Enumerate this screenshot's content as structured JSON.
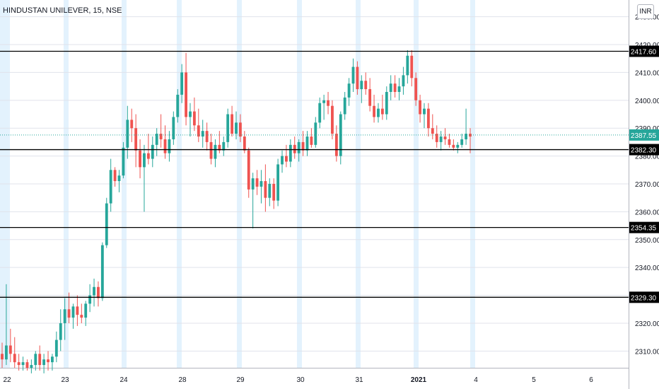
{
  "header": {
    "title": "HINDUSTAN UNILEVER, 15, NSE",
    "currency": "INR"
  },
  "colors": {
    "up": "#26a69a",
    "down": "#ef5350",
    "level_line": "#000000",
    "last_price": "#26a69a",
    "session_shade": "#e3f2fd",
    "grid": "#e0e3eb"
  },
  "chart_data": {
    "type": "candlestick",
    "title": "HINDUSTAN UNILEVER, 15, NSE",
    "currency": "INR",
    "ylim": [
      2304,
      2436
    ],
    "y_ticks": [
      2310,
      2320,
      2330,
      2340,
      2350,
      2360,
      2370,
      2380,
      2390,
      2400,
      2410,
      2420,
      2430
    ],
    "x_ticks": [
      {
        "label": "22",
        "bold": false
      },
      {
        "label": "23",
        "bold": false
      },
      {
        "label": "24",
        "bold": false
      },
      {
        "label": "28",
        "bold": false
      },
      {
        "label": "29",
        "bold": false
      },
      {
        "label": "30",
        "bold": false
      },
      {
        "label": "31",
        "bold": false
      },
      {
        "label": "2021",
        "bold": true
      },
      {
        "label": "4",
        "bold": false
      },
      {
        "label": "5",
        "bold": false
      },
      {
        "label": "6",
        "bold": false
      }
    ],
    "horizontal_levels": [
      {
        "value": 2417.6,
        "label": "2417.60"
      },
      {
        "value": 2382.3,
        "label": "2382.30"
      },
      {
        "value": 2354.35,
        "label": "2354.35"
      },
      {
        "value": 2329.3,
        "label": "2329.30"
      }
    ],
    "last_price": {
      "value": 2387.55,
      "label": "2387.55"
    },
    "series": [
      {
        "name": "HINDUSTAN UNILEVER",
        "ohlc": [
          [
            2309,
            2313,
            2304,
            2307
          ],
          [
            2307,
            2334,
            2305,
            2312
          ],
          [
            2312,
            2318,
            2306,
            2309
          ],
          [
            2309,
            2315,
            2304,
            2306
          ],
          [
            2306,
            2309,
            2303,
            2305
          ],
          [
            2305,
            2308,
            2303,
            2306
          ],
          [
            2306,
            2307,
            2303,
            2304
          ],
          [
            2304,
            2307,
            2302,
            2305
          ],
          [
            2305,
            2310,
            2303,
            2309
          ],
          [
            2309,
            2312,
            2303,
            2305
          ],
          [
            2305,
            2309,
            2302,
            2307
          ],
          [
            2307,
            2310,
            2303,
            2306
          ],
          [
            2306,
            2309,
            2303,
            2308
          ],
          [
            2308,
            2317,
            2306,
            2314
          ],
          [
            2314,
            2325,
            2310,
            2320
          ],
          [
            2320,
            2329,
            2314,
            2325
          ],
          [
            2325,
            2331,
            2320,
            2322
          ],
          [
            2322,
            2327,
            2318,
            2326
          ],
          [
            2326,
            2330,
            2319,
            2323
          ],
          [
            2323,
            2327,
            2320,
            2322
          ],
          [
            2322,
            2328,
            2319,
            2327
          ],
          [
            2327,
            2334,
            2324,
            2330
          ],
          [
            2330,
            2336,
            2326,
            2333
          ],
          [
            2333,
            2335,
            2326,
            2329
          ],
          [
            2329,
            2349,
            2328,
            2348
          ],
          [
            2348,
            2365,
            2347,
            2363
          ],
          [
            2363,
            2379,
            2360,
            2375
          ],
          [
            2375,
            2376,
            2369,
            2371
          ],
          [
            2371,
            2375,
            2367,
            2373
          ],
          [
            2373,
            2385,
            2372,
            2383
          ],
          [
            2383,
            2398,
            2379,
            2393
          ],
          [
            2393,
            2397,
            2385,
            2390
          ],
          [
            2390,
            2395,
            2376,
            2382
          ],
          [
            2382,
            2386,
            2372,
            2376
          ],
          [
            2376,
            2384,
            2360,
            2381
          ],
          [
            2381,
            2388,
            2377,
            2379
          ],
          [
            2379,
            2387,
            2376,
            2384
          ],
          [
            2384,
            2390,
            2380,
            2388
          ],
          [
            2388,
            2395,
            2383,
            2386
          ],
          [
            2386,
            2391,
            2379,
            2381
          ],
          [
            2381,
            2389,
            2378,
            2386
          ],
          [
            2386,
            2396,
            2384,
            2394
          ],
          [
            2394,
            2404,
            2392,
            2402
          ],
          [
            2402,
            2413,
            2399,
            2410
          ],
          [
            2410,
            2417,
            2391,
            2394
          ],
          [
            2394,
            2399,
            2387,
            2396
          ],
          [
            2396,
            2401,
            2389,
            2391
          ],
          [
            2391,
            2397,
            2385,
            2387
          ],
          [
            2387,
            2393,
            2383,
            2389
          ],
          [
            2389,
            2392,
            2382,
            2385
          ],
          [
            2385,
            2388,
            2377,
            2379
          ],
          [
            2379,
            2386,
            2376,
            2384
          ],
          [
            2384,
            2389,
            2381,
            2382
          ],
          [
            2382,
            2387,
            2380,
            2385
          ],
          [
            2385,
            2397,
            2383,
            2395
          ],
          [
            2395,
            2398,
            2387,
            2388
          ],
          [
            2388,
            2396,
            2386,
            2392
          ],
          [
            2392,
            2395,
            2385,
            2387
          ],
          [
            2387,
            2389,
            2381,
            2382
          ],
          [
            2382,
            2383,
            2365,
            2368
          ],
          [
            2368,
            2374,
            2354,
            2372
          ],
          [
            2372,
            2375,
            2366,
            2369
          ],
          [
            2369,
            2375,
            2363,
            2371
          ],
          [
            2371,
            2377,
            2360,
            2365
          ],
          [
            2365,
            2372,
            2362,
            2370
          ],
          [
            2370,
            2372,
            2361,
            2364
          ],
          [
            2364,
            2379,
            2362,
            2377
          ],
          [
            2377,
            2382,
            2374,
            2380
          ],
          [
            2380,
            2384,
            2376,
            2378
          ],
          [
            2378,
            2386,
            2376,
            2384
          ],
          [
            2384,
            2387,
            2379,
            2381
          ],
          [
            2381,
            2386,
            2378,
            2385
          ],
          [
            2385,
            2389,
            2380,
            2382
          ],
          [
            2382,
            2389,
            2380,
            2387
          ],
          [
            2387,
            2390,
            2383,
            2384
          ],
          [
            2384,
            2394,
            2383,
            2392
          ],
          [
            2392,
            2401,
            2390,
            2399
          ],
          [
            2399,
            2402,
            2393,
            2400
          ],
          [
            2400,
            2403,
            2395,
            2398
          ],
          [
            2398,
            2400,
            2386,
            2388
          ],
          [
            2388,
            2391,
            2378,
            2380
          ],
          [
            2380,
            2396,
            2377,
            2395
          ],
          [
            2395,
            2403,
            2393,
            2401
          ],
          [
            2401,
            2408,
            2398,
            2406
          ],
          [
            2406,
            2415,
            2403,
            2412
          ],
          [
            2412,
            2414,
            2402,
            2404
          ],
          [
            2404,
            2409,
            2399,
            2407
          ],
          [
            2407,
            2410,
            2402,
            2404
          ],
          [
            2404,
            2408,
            2396,
            2398
          ],
          [
            2398,
            2402,
            2392,
            2394
          ],
          [
            2394,
            2399,
            2392,
            2397
          ],
          [
            2397,
            2402,
            2393,
            2395
          ],
          [
            2395,
            2405,
            2393,
            2403
          ],
          [
            2403,
            2409,
            2400,
            2406
          ],
          [
            2406,
            2409,
            2401,
            2403
          ],
          [
            2403,
            2408,
            2400,
            2405
          ],
          [
            2405,
            2412,
            2402,
            2409
          ],
          [
            2409,
            2418,
            2406,
            2416
          ],
          [
            2416,
            2418,
            2405,
            2408
          ],
          [
            2408,
            2410,
            2398,
            2400
          ],
          [
            2400,
            2402,
            2392,
            2395
          ],
          [
            2395,
            2399,
            2390,
            2397
          ],
          [
            2397,
            2399,
            2387,
            2390
          ],
          [
            2390,
            2395,
            2386,
            2388
          ],
          [
            2388,
            2391,
            2383,
            2385
          ],
          [
            2385,
            2389,
            2382,
            2387
          ],
          [
            2387,
            2390,
            2384,
            2386
          ],
          [
            2386,
            2388,
            2383,
            2384
          ],
          [
            2384,
            2386,
            2382,
            2383
          ],
          [
            2383,
            2385,
            2381,
            2384
          ],
          [
            2384,
            2388,
            2383,
            2386
          ],
          [
            2386,
            2397,
            2384,
            2388
          ],
          [
            2388,
            2390,
            2381,
            2387
          ]
        ]
      }
    ],
    "grid": true
  }
}
